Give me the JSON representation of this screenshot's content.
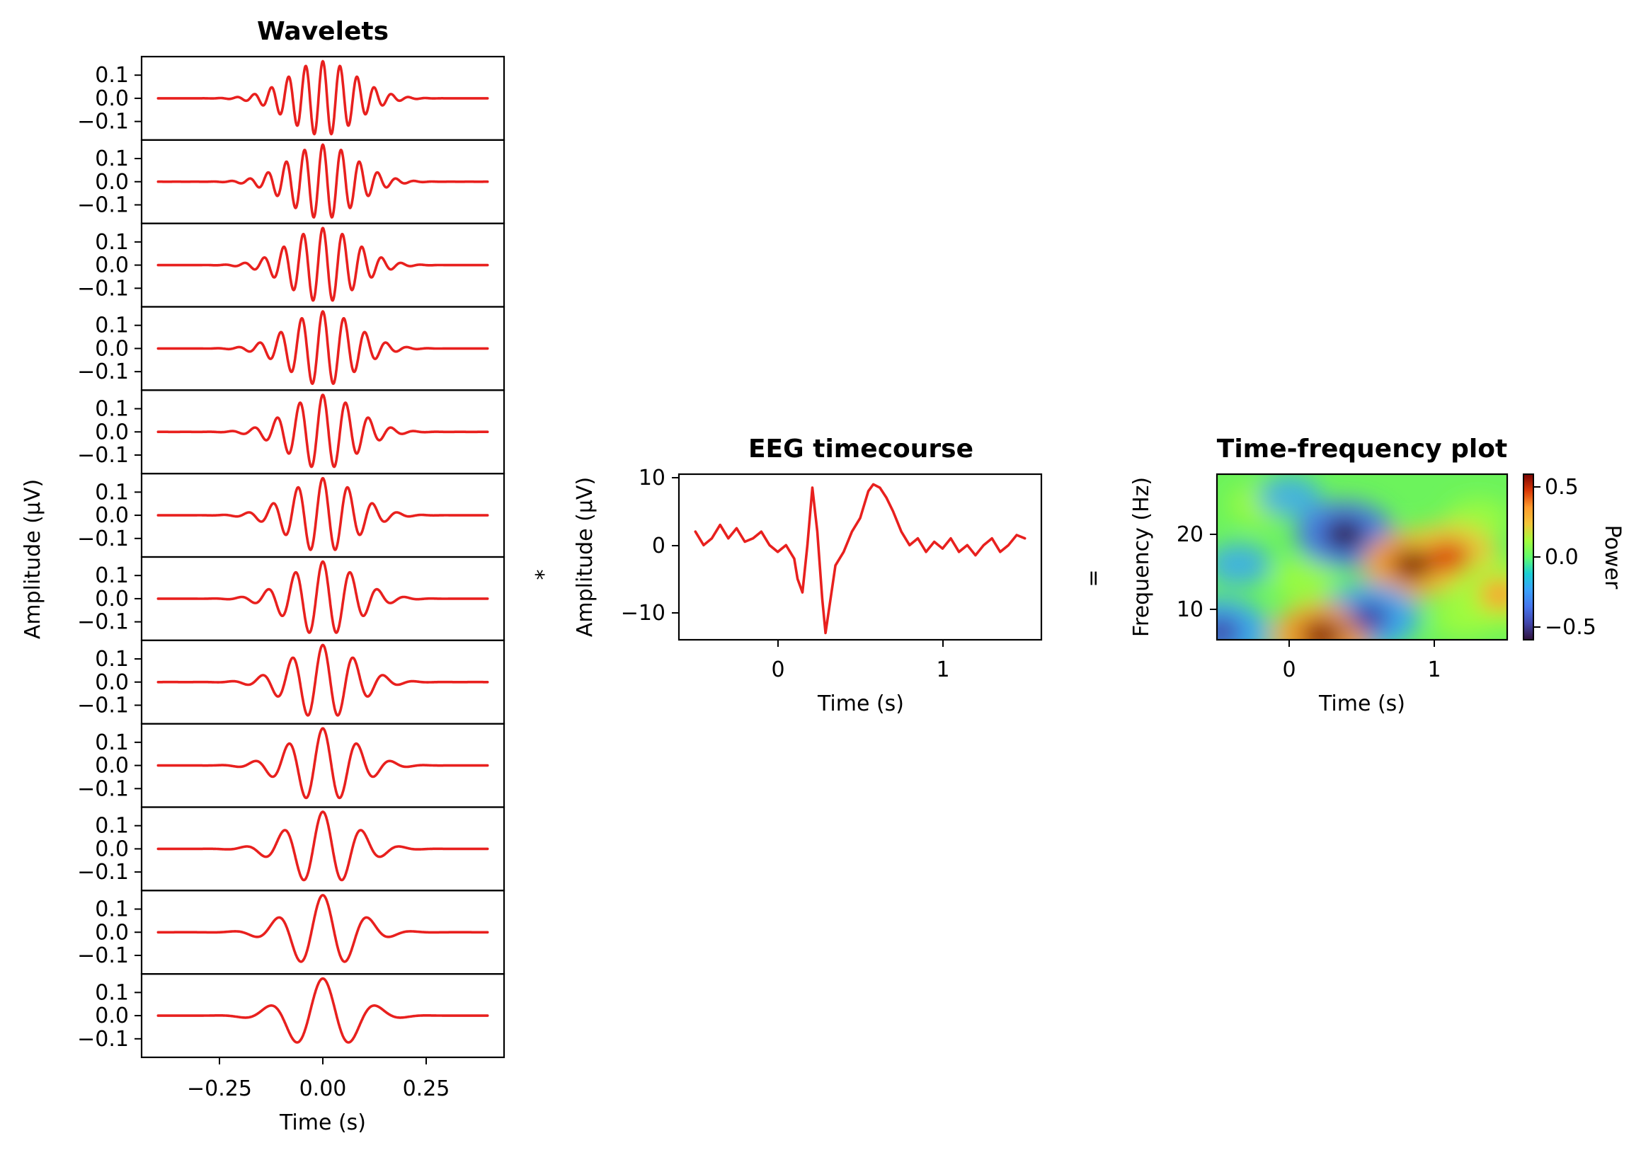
{
  "colors": {
    "line": "#e8201e",
    "frame": "#000000"
  },
  "operators": {
    "convolve": "*",
    "equals": "="
  },
  "chart_data": [
    {
      "type": "line",
      "title": "Wavelets",
      "xlabel": "Time (s)",
      "ylabel": "Amplitude (μV)",
      "xlim": [
        -0.44,
        0.44
      ],
      "ylim": [
        -0.18,
        0.18
      ],
      "xticks": [
        -0.25,
        0.0,
        0.25
      ],
      "xtick_labels": [
        "−0.25",
        "0.00",
        "0.25"
      ],
      "yticks": [
        0.1,
        0.0,
        -0.1
      ],
      "ytick_labels": [
        "0.1",
        "0.0",
        "−0.1"
      ],
      "x_range": [
        -0.4,
        0.4
      ],
      "panels": 12,
      "frequencies_hz": [
        24,
        22.5,
        21,
        19.5,
        18,
        16.5,
        15,
        13.5,
        12,
        10.5,
        9,
        7.5
      ],
      "peak_amplitude": 0.16,
      "gaussian_width_s": 0.08,
      "line_color": "#e8201e"
    },
    {
      "type": "line",
      "title": "EEG timecourse",
      "xlabel": "Time (s)",
      "ylabel": "Amplitude (μV)",
      "xlim": [
        -0.6,
        1.6
      ],
      "ylim": [
        -14,
        10.5
      ],
      "xticks": [
        0,
        1
      ],
      "xtick_labels": [
        "0",
        "1"
      ],
      "yticks": [
        10,
        0,
        -10
      ],
      "ytick_labels": [
        "10",
        "0",
        "−10"
      ],
      "x": [
        -0.5,
        -0.45,
        -0.4,
        -0.35,
        -0.3,
        -0.25,
        -0.2,
        -0.15,
        -0.1,
        -0.05,
        0.0,
        0.05,
        0.1,
        0.12,
        0.15,
        0.18,
        0.21,
        0.24,
        0.27,
        0.29,
        0.32,
        0.35,
        0.4,
        0.45,
        0.5,
        0.55,
        0.58,
        0.62,
        0.66,
        0.7,
        0.75,
        0.8,
        0.85,
        0.9,
        0.95,
        1.0,
        1.05,
        1.1,
        1.15,
        1.2,
        1.25,
        1.3,
        1.35,
        1.4,
        1.45,
        1.5
      ],
      "y": [
        2,
        0,
        1,
        3,
        1,
        2.5,
        0.5,
        1,
        2,
        0,
        -1,
        0,
        -2,
        -5,
        -7,
        0,
        8.5,
        2,
        -8,
        -13,
        -8,
        -3,
        -1,
        2,
        4,
        8,
        9,
        8.5,
        7,
        5,
        2,
        0,
        1,
        -1,
        0.5,
        -0.5,
        1,
        -1,
        0,
        -1.5,
        0,
        1,
        -1,
        0,
        1.5,
        1
      ]
    },
    {
      "type": "heatmap",
      "title": "Time-frequency plot",
      "xlabel": "Time (s)",
      "ylabel": "Frequency (Hz)",
      "xlim": [
        -0.5,
        1.5
      ],
      "ylim": [
        6,
        28
      ],
      "xticks": [
        0,
        1
      ],
      "xtick_labels": [
        "0",
        "1"
      ],
      "yticks": [
        20,
        10
      ],
      "ytick_labels": [
        "20",
        "10"
      ],
      "colorbar": {
        "label": "Power",
        "range": [
          -0.58,
          0.58
        ],
        "ticks": [
          0.5,
          0.0,
          -0.5
        ],
        "tick_labels": [
          "0.5",
          "0.0",
          "−0.5"
        ]
      },
      "colormap": "turbo",
      "features": [
        {
          "t": 0.38,
          "f": 20,
          "power": -0.58
        },
        {
          "t": 0.85,
          "f": 16,
          "power": 0.55
        },
        {
          "t": 1.1,
          "f": 17,
          "power": 0.45
        },
        {
          "t": 0.55,
          "f": 9,
          "power": -0.5
        },
        {
          "t": 0.22,
          "f": 6.5,
          "power": 0.55
        },
        {
          "t": -0.48,
          "f": 7,
          "power": -0.45
        },
        {
          "t": 1.45,
          "f": 12,
          "power": 0.3
        }
      ]
    }
  ]
}
